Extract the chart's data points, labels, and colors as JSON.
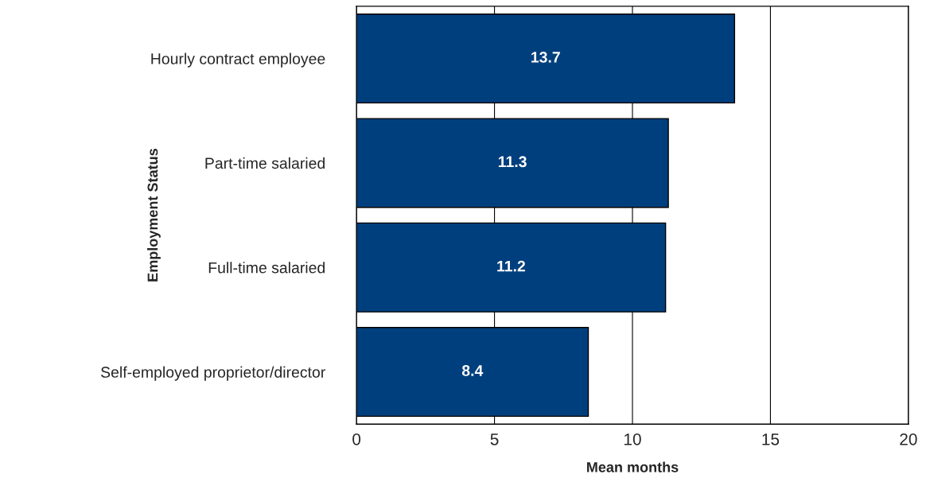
{
  "chart_data": {
    "type": "bar",
    "orientation": "horizontal",
    "categories": [
      "Hourly contract employee",
      "Part-time salaried",
      "Full-time salaried",
      "Self-employed proprietor/director"
    ],
    "values": [
      13.7,
      11.3,
      11.2,
      8.4
    ],
    "color": "#003f7d",
    "xlabel": "Mean months",
    "ylabel": "Employment Status",
    "xlim": [
      0,
      20
    ],
    "xticks": [
      0,
      5,
      10,
      15,
      20
    ],
    "grid": "x",
    "data_labels": true
  }
}
